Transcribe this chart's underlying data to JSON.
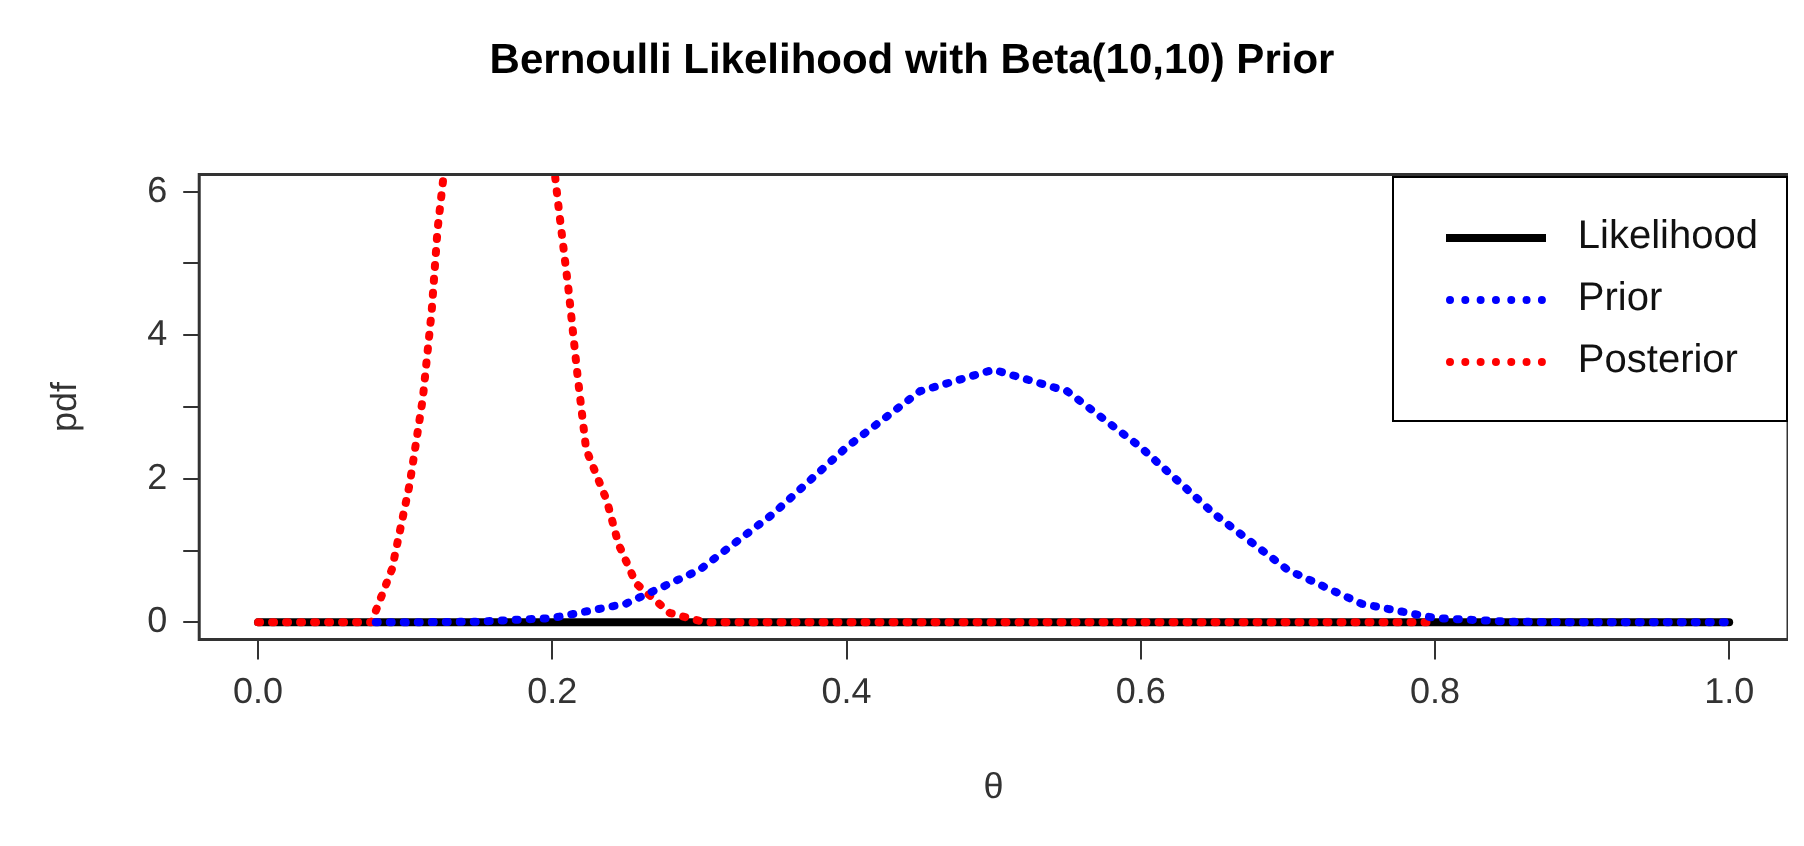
{
  "chart_data": {
    "type": "line",
    "title": "Bernoulli Likelihood with Beta(10,10) Prior",
    "xlabel": "θ",
    "ylabel": "pdf",
    "xlim": [
      -0.04,
      1.04
    ],
    "xticks": [
      {
        "value": 0,
        "label": "0.0"
      },
      0.2,
      0.4,
      0.6,
      0.8,
      {
        "value": 1,
        "label": "1.0"
      }
    ],
    "ylim": [
      -0.24,
      6.24
    ],
    "yticks": [
      0,
      {
        "value": 1,
        "label": null
      },
      2,
      {
        "value": 3,
        "label": null
      },
      4,
      {
        "value": 5,
        "label": null
      },
      6
    ],
    "grid": false,
    "legend": "top right",
    "marker": "none",
    "series": [
      {
        "name": "Likelihood",
        "color": "#000000",
        "line_style": "solid",
        "x": [
          0,
          1
        ],
        "values": [
          0,
          0
        ]
      },
      {
        "name": "Prior",
        "color": "#0000ff",
        "line_style": "dotted",
        "x": [
          0.08,
          0.1,
          0.15,
          0.2,
          0.25,
          0.3,
          0.35,
          0.4,
          0.45,
          0.5,
          0.55,
          0.6,
          0.65,
          0.7,
          0.75,
          0.8,
          0.85,
          0.9,
          1
        ],
        "values": [
          0,
          0,
          0.01,
          0.06,
          0.26,
          0.73,
          1.51,
          2.44,
          3.22,
          3.52,
          3.22,
          2.44,
          1.51,
          0.73,
          0.26,
          0.06,
          0.01,
          0,
          0
        ]
      },
      {
        "name": "Posterior",
        "color": "#ff0000",
        "line_style": "dotted",
        "x": [
          0,
          0.077,
          0.091,
          0.103,
          0.112,
          0.118,
          0.122,
          0.126,
          0.16,
          0.202,
          0.204,
          0.211,
          0.217,
          0.223,
          0.237,
          0.245,
          0.257,
          0.28,
          0.304,
          0.8
        ],
        "values": [
          0,
          0,
          0.74,
          1.92,
          3.12,
          4.33,
          5.47,
          6.2,
          null,
          6.2,
          5.83,
          4.64,
          3.47,
          2.41,
          1.7,
          1.09,
          0.54,
          0.13,
          0,
          0
        ]
      }
    ]
  }
}
